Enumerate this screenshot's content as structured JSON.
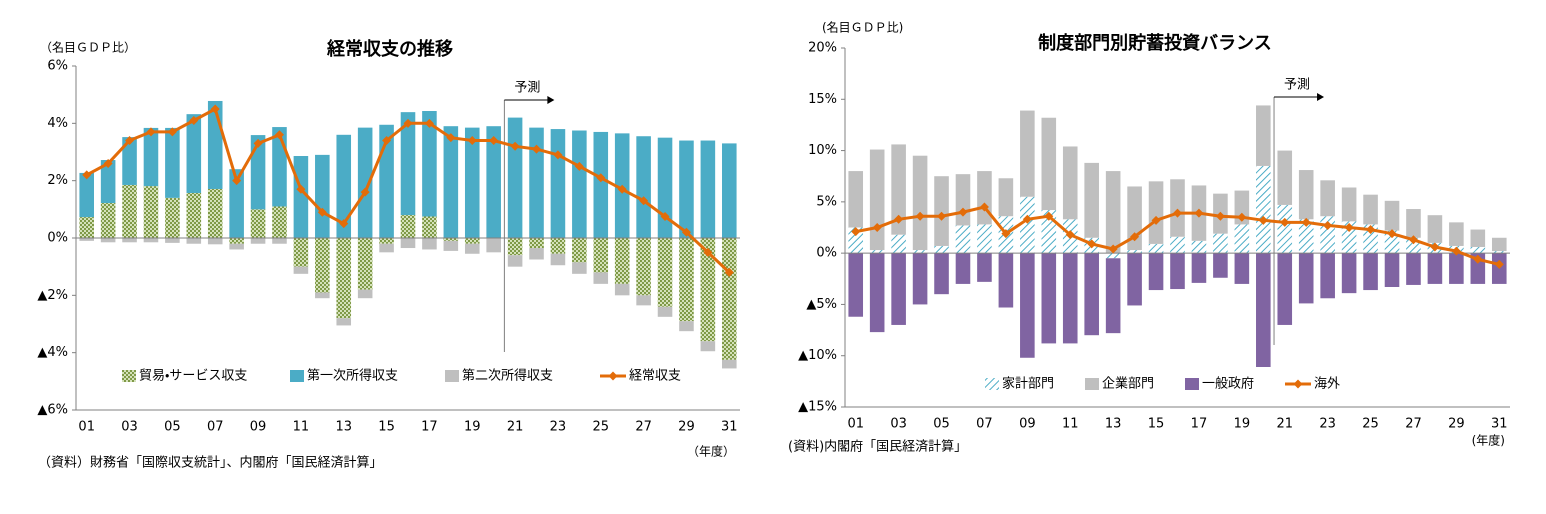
{
  "chart_data": [
    {
      "type": "bar",
      "stacked": true,
      "title": "経常収支の推移",
      "y_label": "（名目ＧＤＰ比）",
      "x_label": "（年度）",
      "note": "（資料）財務省「国際収支統計」、内閣府「国民経済計算」",
      "annotation": "予測",
      "categories": [
        "01",
        null,
        "03",
        null,
        "05",
        null,
        "07",
        null,
        "09",
        null,
        "11",
        null,
        "13",
        null,
        "15",
        null,
        "17",
        null,
        "19",
        null,
        "21",
        null,
        "23",
        null,
        "25",
        null,
        "27",
        null,
        "29",
        null,
        "31"
      ],
      "ylim": [
        -6,
        6
      ],
      "yticks": [
        {
          "value": 6,
          "label": "6%"
        },
        {
          "value": 4,
          "label": "4%"
        },
        {
          "value": 2,
          "label": "2%"
        },
        {
          "value": 0,
          "label": "0%"
        },
        {
          "value": -2,
          "label": "▲2%"
        },
        {
          "value": -4,
          "label": "▲4%"
        },
        {
          "value": -6,
          "label": "▲6%"
        }
      ],
      "legend": "bottom",
      "series": [
        {
          "name": "貿易・サービス収支",
          "type": "bar",
          "color": "#77933c",
          "pattern": "dots",
          "values": [
            0.73,
            1.22,
            1.85,
            1.81,
            1.4,
            1.57,
            1.71,
            -0.2,
            1.0,
            1.1,
            -1.0,
            -1.9,
            -2.8,
            -1.8,
            -0.2,
            0.8,
            0.75,
            -0.1,
            -0.2,
            0,
            -0.6,
            -0.35,
            -0.55,
            -0.85,
            -1.2,
            -1.6,
            -2.0,
            -2.4,
            -2.9,
            -3.6,
            -4.25
          ]
        },
        {
          "name": "第一次所得収支",
          "type": "bar",
          "color": "#4bacc6",
          "values": [
            1.54,
            1.5,
            1.67,
            2.03,
            2.44,
            2.75,
            3.07,
            2.4,
            2.59,
            2.77,
            2.86,
            2.9,
            3.6,
            3.85,
            3.95,
            3.59,
            3.68,
            3.9,
            3.85,
            3.9,
            4.2,
            3.85,
            3.8,
            3.75,
            3.7,
            3.65,
            3.55,
            3.5,
            3.4,
            3.4,
            3.3
          ]
        },
        {
          "name": "第二次所得収支",
          "type": "bar",
          "color": "#bfbfbf",
          "values": [
            -0.1,
            -0.15,
            -0.15,
            -0.15,
            -0.17,
            -0.2,
            -0.22,
            -0.2,
            -0.2,
            -0.2,
            -0.25,
            -0.2,
            -0.25,
            -0.3,
            -0.3,
            -0.35,
            -0.4,
            -0.35,
            -0.35,
            -0.5,
            -0.4,
            -0.4,
            -0.4,
            -0.4,
            -0.4,
            -0.4,
            -0.35,
            -0.35,
            -0.35,
            -0.35,
            -0.3
          ]
        },
        {
          "name": "経常収支",
          "type": "line",
          "color": "#e36c09",
          "values": [
            2.2,
            2.6,
            3.4,
            3.7,
            3.7,
            4.1,
            4.5,
            2.0,
            3.3,
            3.6,
            1.7,
            0.9,
            0.5,
            1.6,
            3.4,
            4.0,
            4.0,
            3.5,
            3.4,
            3.4,
            3.2,
            3.1,
            2.9,
            2.5,
            2.1,
            1.7,
            1.3,
            0.75,
            0.2,
            -0.5,
            -1.2
          ]
        }
      ]
    },
    {
      "type": "bar",
      "stacked": true,
      "title": "制度部門別貯蓄投資バランス",
      "y_label": "(名目ＧＤＰ比)",
      "x_label": "(年度)",
      "note": "(資料)内閣府「国民経済計算」",
      "annotation": "予測",
      "categories": [
        "01",
        null,
        "03",
        null,
        "05",
        null,
        "07",
        null,
        "09",
        null,
        "11",
        null,
        "13",
        null,
        "15",
        null,
        "17",
        null,
        "19",
        null,
        "21",
        null,
        "23",
        null,
        "25",
        null,
        "27",
        null,
        "29",
        null,
        "31"
      ],
      "ylim": [
        -15,
        20
      ],
      "yticks": [
        {
          "value": 20,
          "label": "20%"
        },
        {
          "value": 15,
          "label": "15%"
        },
        {
          "value": 10,
          "label": "10%"
        },
        {
          "value": 5,
          "label": "5%"
        },
        {
          "value": 0,
          "label": "0%"
        },
        {
          "value": -5,
          "label": "▲5%"
        },
        {
          "value": -10,
          "label": "▲10%"
        },
        {
          "value": -15,
          "label": "▲15%"
        }
      ],
      "legend": "bottom",
      "series": [
        {
          "name": "家計部門",
          "type": "bar",
          "color": "#4bacc6",
          "pattern": "hatch",
          "values": [
            2.5,
            0.3,
            1.8,
            0.3,
            0.7,
            2.7,
            2.8,
            3.6,
            5.5,
            4.2,
            3.3,
            1.5,
            -0.5,
            0.3,
            0.9,
            1.6,
            1.2,
            1.9,
            2.8,
            8.5,
            4.7,
            3.3,
            3.6,
            3.1,
            2.8,
            2.2,
            1.5,
            1.0,
            0.7,
            0.6,
            0.2
          ]
        },
        {
          "name": "企業部門",
          "type": "bar",
          "color": "#bfbfbf",
          "values": [
            5.5,
            9.8,
            8.8,
            9.2,
            6.8,
            5.0,
            5.2,
            3.7,
            8.4,
            9.0,
            7.1,
            7.3,
            8.0,
            6.2,
            6.1,
            5.6,
            5.4,
            3.9,
            3.3,
            5.9,
            5.3,
            4.8,
            3.5,
            3.3,
            2.9,
            2.9,
            2.8,
            2.7,
            2.3,
            1.7,
            1.3
          ]
        },
        {
          "name": "一般政府",
          "type": "bar",
          "color": "#8064a2",
          "values": [
            -6.2,
            -7.7,
            -7.0,
            -5.0,
            -4.0,
            -3.0,
            -2.8,
            -5.3,
            -10.2,
            -8.8,
            -8.8,
            -8.0,
            -7.3,
            -5.1,
            -3.6,
            -3.5,
            -2.9,
            -2.4,
            -3.0,
            -11.1,
            -7.0,
            -4.9,
            -4.4,
            -3.9,
            -3.6,
            -3.3,
            -3.1,
            -3.0,
            -3.0,
            -3.0,
            -3.0
          ]
        },
        {
          "name": "海外",
          "type": "line",
          "color": "#e36c09",
          "values": [
            2.1,
            2.5,
            3.3,
            3.6,
            3.6,
            4.0,
            4.5,
            1.9,
            3.3,
            3.6,
            1.8,
            0.9,
            0.4,
            1.6,
            3.2,
            3.9,
            3.9,
            3.6,
            3.5,
            3.2,
            3.0,
            3.0,
            2.7,
            2.5,
            2.3,
            1.9,
            1.3,
            0.6,
            0.2,
            -0.6,
            -1.1
          ]
        }
      ]
    }
  ]
}
